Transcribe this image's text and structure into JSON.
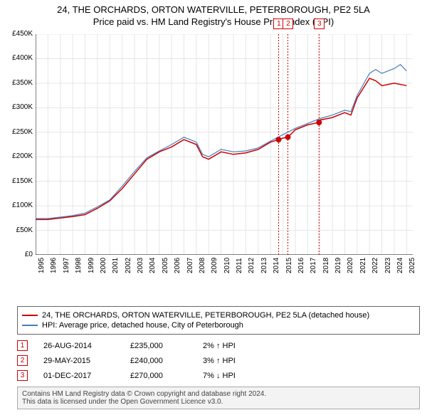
{
  "title": {
    "main": "24, THE ORCHARDS, ORTON WATERVILLE, PETERBOROUGH, PE2 5LA",
    "sub": "Price paid vs. HM Land Registry's House Price Index (HPI)"
  },
  "chart": {
    "type": "line",
    "background_color": "#ffffff",
    "grid_color": "#e6e6e6",
    "axis_color": "#000000",
    "ylim": [
      0,
      450000
    ],
    "ytick_step": 50000,
    "yticks": [
      "£0",
      "£50K",
      "£100K",
      "£150K",
      "£200K",
      "£250K",
      "£300K",
      "£350K",
      "£400K",
      "£450K"
    ],
    "xlim": [
      1995,
      2025.5
    ],
    "xticks": [
      1995,
      1996,
      1997,
      1998,
      1999,
      2000,
      2001,
      2002,
      2003,
      2004,
      2005,
      2006,
      2007,
      2008,
      2009,
      2010,
      2011,
      2012,
      2013,
      2014,
      2015,
      2016,
      2017,
      2018,
      2019,
      2020,
      2021,
      2022,
      2023,
      2024,
      2025
    ],
    "label_fontsize": 10,
    "series": [
      {
        "name": "property",
        "label": "24, THE ORCHARDS, ORTON WATERVILLE, PETERBOROUGH, PE2 5LA (detached house)",
        "color": "#cc0000",
        "line_width": 1.5,
        "data": [
          [
            1995,
            72000
          ],
          [
            1996,
            72000
          ],
          [
            1997,
            75000
          ],
          [
            1998,
            78000
          ],
          [
            1999,
            82000
          ],
          [
            2000,
            95000
          ],
          [
            2001,
            110000
          ],
          [
            2002,
            135000
          ],
          [
            2003,
            165000
          ],
          [
            2004,
            195000
          ],
          [
            2005,
            210000
          ],
          [
            2006,
            220000
          ],
          [
            2007,
            235000
          ],
          [
            2008,
            225000
          ],
          [
            2008.5,
            200000
          ],
          [
            2009,
            195000
          ],
          [
            2010,
            210000
          ],
          [
            2011,
            205000
          ],
          [
            2012,
            208000
          ],
          [
            2013,
            215000
          ],
          [
            2014,
            230000
          ],
          [
            2014.65,
            235000
          ],
          [
            2015,
            238000
          ],
          [
            2015.4,
            240000
          ],
          [
            2016,
            255000
          ],
          [
            2017,
            265000
          ],
          [
            2017.9,
            270000
          ],
          [
            2018,
            275000
          ],
          [
            2019,
            280000
          ],
          [
            2020,
            290000
          ],
          [
            2020.5,
            285000
          ],
          [
            2021,
            320000
          ],
          [
            2022,
            360000
          ],
          [
            2022.5,
            355000
          ],
          [
            2023,
            345000
          ],
          [
            2024,
            350000
          ],
          [
            2025,
            345000
          ]
        ]
      },
      {
        "name": "hpi",
        "label": "HPI: Average price, detached house, City of Peterborough",
        "color": "#4a7ebb",
        "line_width": 1.2,
        "data": [
          [
            1995,
            74000
          ],
          [
            1996,
            74000
          ],
          [
            1997,
            77000
          ],
          [
            1998,
            80000
          ],
          [
            1999,
            85000
          ],
          [
            2000,
            98000
          ],
          [
            2001,
            112000
          ],
          [
            2002,
            140000
          ],
          [
            2003,
            170000
          ],
          [
            2004,
            198000
          ],
          [
            2005,
            212000
          ],
          [
            2006,
            225000
          ],
          [
            2007,
            240000
          ],
          [
            2008,
            230000
          ],
          [
            2008.5,
            205000
          ],
          [
            2009,
            200000
          ],
          [
            2010,
            215000
          ],
          [
            2011,
            210000
          ],
          [
            2012,
            212000
          ],
          [
            2013,
            218000
          ],
          [
            2014,
            232000
          ],
          [
            2015,
            245000
          ],
          [
            2016,
            258000
          ],
          [
            2017,
            268000
          ],
          [
            2018,
            278000
          ],
          [
            2019,
            285000
          ],
          [
            2020,
            295000
          ],
          [
            2020.5,
            292000
          ],
          [
            2021,
            325000
          ],
          [
            2022,
            370000
          ],
          [
            2022.5,
            378000
          ],
          [
            2023,
            370000
          ],
          [
            2024,
            380000
          ],
          [
            2024.5,
            388000
          ],
          [
            2025,
            375000
          ]
        ]
      }
    ],
    "event_markers": [
      {
        "n": "1",
        "x": 2014.65,
        "y": 235000,
        "line_color": "#cc0000",
        "line_dash": "2,2",
        "dot_color": "#cc0000"
      },
      {
        "n": "2",
        "x": 2015.4,
        "y": 240000,
        "line_color": "#cc0000",
        "line_dash": "2,2",
        "dot_color": "#cc0000"
      },
      {
        "n": "3",
        "x": 2017.92,
        "y": 270000,
        "line_color": "#cc0000",
        "line_dash": "2,2",
        "dot_color": "#cc0000"
      }
    ]
  },
  "legend": {
    "border_color": "#666666",
    "items": [
      {
        "color": "#cc0000",
        "label": "24, THE ORCHARDS, ORTON WATERVILLE, PETERBOROUGH, PE2 5LA (detached house)"
      },
      {
        "color": "#4a7ebb",
        "label": "HPI: Average price, detached house, City of Peterborough"
      }
    ]
  },
  "events": [
    {
      "n": "1",
      "date": "26-AUG-2014",
      "price": "£235,000",
      "delta": "2% ↑ HPI"
    },
    {
      "n": "2",
      "date": "29-MAY-2015",
      "price": "£240,000",
      "delta": "3% ↑ HPI"
    },
    {
      "n": "3",
      "date": "01-DEC-2017",
      "price": "£270,000",
      "delta": "7% ↓ HPI"
    }
  ],
  "footer": {
    "line1": "Contains HM Land Registry data © Crown copyright and database right 2024.",
    "line2": "This data is licensed under the Open Government Licence v3.0."
  }
}
